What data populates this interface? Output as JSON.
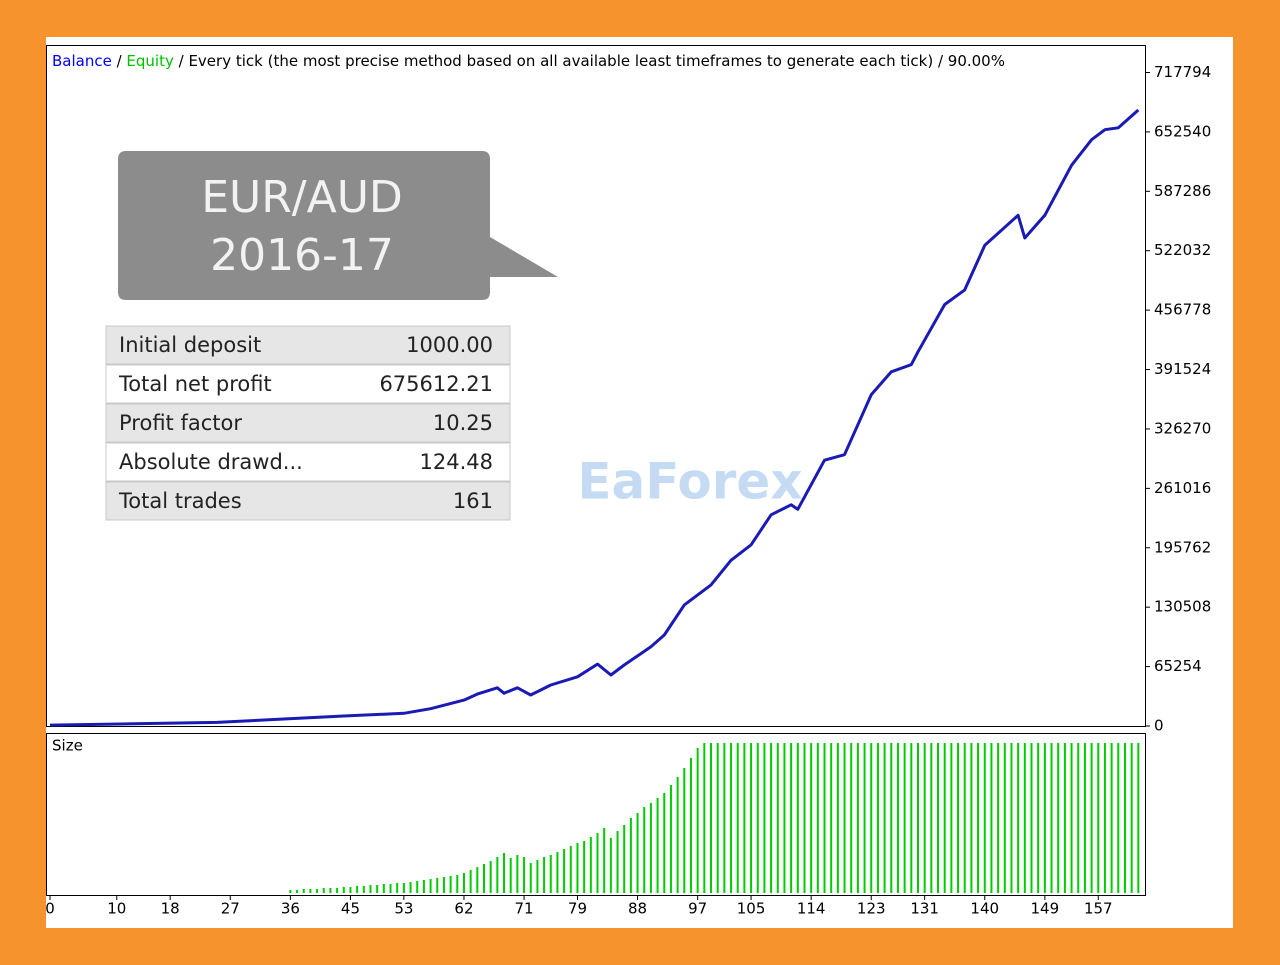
{
  "header": [
    {
      "text": "Balance",
      "color": "#0000ff"
    },
    {
      "text": " / ",
      "color": "#000000"
    },
    {
      "text": "Equity",
      "color": "#00c000"
    },
    {
      "text": " / Every tick (the most precise method based on all available least timeframes to generate each tick) / 90.00%",
      "color": "#000000"
    }
  ],
  "callout": [
    "EUR/AUD",
    "2016-17"
  ],
  "stats": [
    [
      "Initial deposit",
      "1000.00"
    ],
    [
      "Total net profit",
      "675612.21"
    ],
    [
      "Profit factor",
      "10.25"
    ],
    [
      "Absolute drawd...",
      "124.48"
    ],
    [
      "Total trades",
      "161"
    ]
  ],
  "watermark": "EaForex",
  "chart_data": [
    {
      "type": "line",
      "series": [
        {
          "color": "#1a1ab4",
          "values": [
            1000,
            4000,
            7700,
            11000,
            14000,
            19000,
            28500,
            35000,
            42000,
            36000,
            42000,
            34000,
            45000,
            54000,
            68000,
            56000,
            67000,
            87000,
            100000,
            133000,
            155000,
            182000,
            199000,
            232000,
            243000,
            238000,
            292000,
            298000,
            364000,
            389000,
            397000,
            411000,
            463000,
            479000,
            528000,
            561000,
            536000,
            561000,
            616000,
            644000,
            655000,
            657000,
            676612
          ]
        }
      ],
      "x": [
        0,
        25,
        35,
        44,
        53,
        57,
        62,
        64,
        67,
        68,
        70,
        72,
        75,
        79,
        82,
        84,
        86,
        90,
        92,
        95,
        99,
        102,
        105,
        108,
        111,
        112,
        116,
        119,
        123,
        126,
        129,
        130,
        134,
        137,
        140,
        145,
        146,
        149,
        153,
        156,
        158,
        160,
        163
      ],
      "xlim": [
        0,
        164
      ],
      "ylim": [
        0,
        748000
      ],
      "yticks": [
        0,
        65254,
        130508,
        195762,
        261016,
        326270,
        391524,
        456778,
        522032,
        587286,
        652540,
        717794
      ]
    },
    {
      "type": "bar",
      "title": "Size",
      "color": "#00cc00",
      "xlim": [
        0,
        164
      ],
      "xticks": [
        0,
        10,
        18,
        27,
        36,
        45,
        53,
        62,
        71,
        79,
        88,
        97,
        105,
        114,
        123,
        131,
        140,
        149,
        157
      ],
      "x": [
        36,
        37,
        38,
        39,
        40,
        41,
        42,
        43,
        44,
        45,
        46,
        47,
        48,
        49,
        50,
        51,
        52,
        53,
        54,
        55,
        56,
        57,
        58,
        59,
        60,
        61,
        62,
        63,
        64,
        65,
        66,
        67,
        68,
        69,
        70,
        71,
        72,
        73,
        74,
        75,
        76,
        77,
        78,
        79,
        80,
        81,
        82,
        83,
        84,
        85,
        86,
        87,
        88,
        89,
        90,
        91,
        92,
        93,
        94,
        95,
        96,
        97,
        98,
        99,
        100,
        101,
        102,
        103,
        104,
        105,
        106,
        107,
        108,
        109,
        110,
        111,
        112,
        113,
        114,
        115,
        116,
        117,
        118,
        119,
        120,
        121,
        122,
        123,
        124,
        125,
        126,
        127,
        128,
        129,
        130,
        131,
        132,
        133,
        134,
        135,
        136,
        137,
        138,
        139,
        140,
        141,
        142,
        143,
        144,
        145,
        146,
        147,
        148,
        149,
        150,
        151,
        152,
        153,
        154,
        155,
        156,
        157,
        158,
        159,
        160,
        161,
        162,
        163
      ],
      "values": [
        0.3,
        0.3,
        0.4,
        0.4,
        0.4,
        0.5,
        0.5,
        0.5,
        0.6,
        0.6,
        0.7,
        0.7,
        0.8,
        0.8,
        0.9,
        0.9,
        1.0,
        1.0,
        1.1,
        1.2,
        1.3,
        1.4,
        1.5,
        1.6,
        1.7,
        1.8,
        2.0,
        2.3,
        2.6,
        2.9,
        3.2,
        3.6,
        4.0,
        3.5,
        3.8,
        3.6,
        3.0,
        3.3,
        3.6,
        3.8,
        4.1,
        4.4,
        4.7,
        5.0,
        5.2,
        5.6,
        6.0,
        6.5,
        5.5,
        6.2,
        6.8,
        7.5,
        8.0,
        8.6,
        9.0,
        9.5,
        10.0,
        10.8,
        11.6,
        12.5,
        13.5,
        14.5,
        15.0,
        15.0,
        15.0,
        15.0,
        15.0,
        15.0,
        15.0,
        15.0,
        15.0,
        15.0,
        15.0,
        15.0,
        15.0,
        15.0,
        15.0,
        15.0,
        15.0,
        15.0,
        15.0,
        15.0,
        15.0,
        15.0,
        15.0,
        15.0,
        15.0,
        15.0,
        15.0,
        15.0,
        15.0,
        15.0,
        15.0,
        15.0,
        15.0,
        15.0,
        15.0,
        15.0,
        15.0,
        15.0,
        15.0,
        15.0,
        15.0,
        15.0,
        15.0,
        15.0,
        15.0,
        15.0,
        15.0,
        15.0,
        15.0,
        15.0,
        15.0,
        15.0,
        15.0,
        15.0,
        15.0,
        15.0,
        15.0,
        15.0,
        15.0,
        15.0,
        15.0,
        15.0,
        15.0,
        15.0,
        15.0,
        15.0
      ]
    }
  ]
}
